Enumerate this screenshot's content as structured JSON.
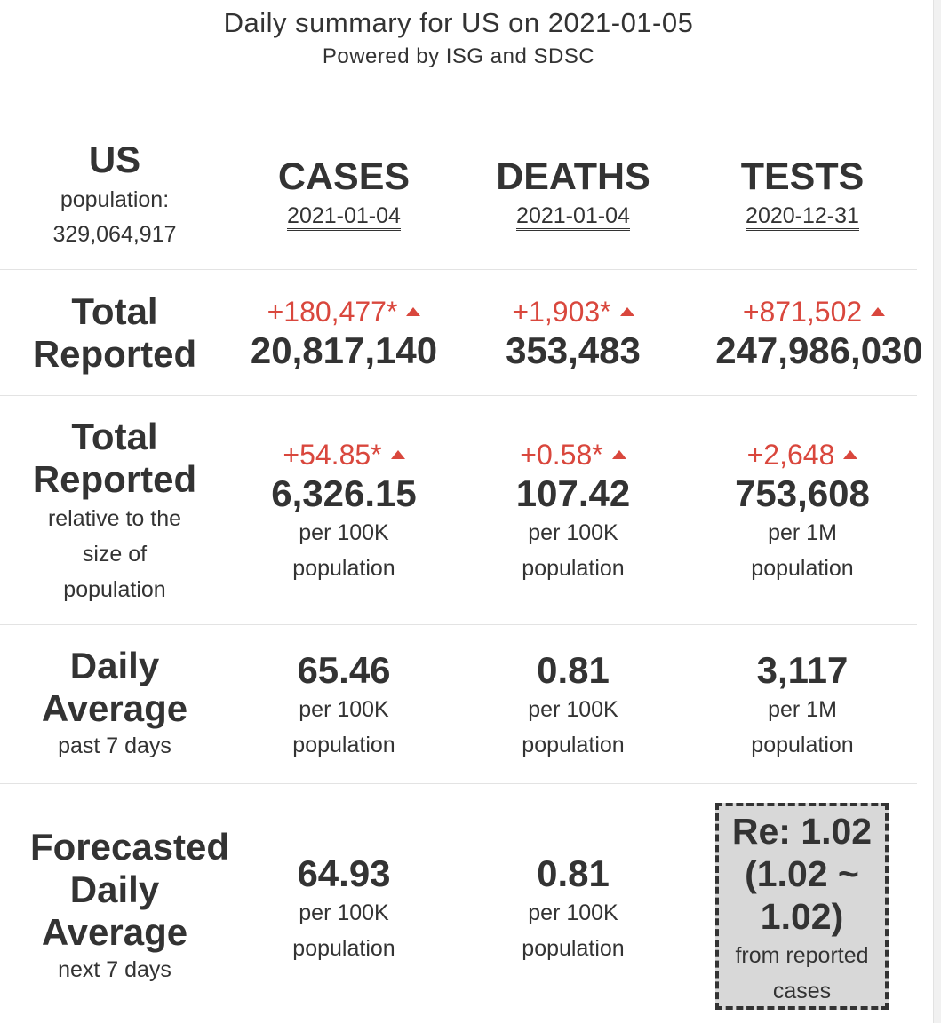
{
  "header": {
    "title": "Daily summary for US on 2021-01-05",
    "subtitle": "Powered by ISG and SDSC"
  },
  "region": {
    "name": "US",
    "population_label": "population:",
    "population_value": "329,064,917"
  },
  "columns": [
    {
      "name": "CASES",
      "date": "2021-01-04"
    },
    {
      "name": "DEATHS",
      "date": "2021-01-04"
    },
    {
      "name": "TESTS",
      "date": "2020-12-31"
    }
  ],
  "rows": {
    "total": {
      "label_line1": "Total",
      "label_line2": "Reported",
      "cases": {
        "delta": "+180,477*",
        "value": "20,817,140"
      },
      "deaths": {
        "delta": "+1,903*",
        "value": "353,483"
      },
      "tests": {
        "delta": "+871,502",
        "value": "247,986,030"
      }
    },
    "relative": {
      "label_line1": "Total",
      "label_line2": "Reported",
      "sub_line1": "relative to the",
      "sub_line2": "size of",
      "sub_line3": "population",
      "cases": {
        "delta": "+54.85*",
        "value": "6,326.15",
        "unit1": "per 100K",
        "unit2": "population"
      },
      "deaths": {
        "delta": "+0.58*",
        "value": "107.42",
        "unit1": "per 100K",
        "unit2": "population"
      },
      "tests": {
        "delta": "+2,648",
        "value": "753,608",
        "unit1": "per 1M",
        "unit2": "population"
      }
    },
    "daily": {
      "label_line1": "Daily",
      "label_line2": "Average",
      "sub": "past 7 days",
      "cases": {
        "value": "65.46",
        "unit1": "per 100K",
        "unit2": "population"
      },
      "deaths": {
        "value": "0.81",
        "unit1": "per 100K",
        "unit2": "population"
      },
      "tests": {
        "value": "3,117",
        "unit1": "per 1M",
        "unit2": "population"
      }
    },
    "forecast": {
      "label_line1": "Forecasted",
      "label_line2": "Daily",
      "label_line3": "Average",
      "sub": "next 7 days",
      "cases": {
        "value": "64.93",
        "unit1": "per 100K",
        "unit2": "population"
      },
      "deaths": {
        "value": "0.81",
        "unit1": "per 100K",
        "unit2": "population"
      },
      "rt": {
        "line1": "Re: 1.02",
        "line2": "(1.02 ~",
        "line3": "1.02)",
        "note1": "from reported",
        "note2": "cases"
      }
    }
  },
  "colors": {
    "text": "#333333",
    "increase": "#d9473d",
    "divider": "#e3e3e3",
    "rt_box_bg": "#d8d8d8"
  },
  "icons": {
    "increase": "triangle-up-icon"
  }
}
